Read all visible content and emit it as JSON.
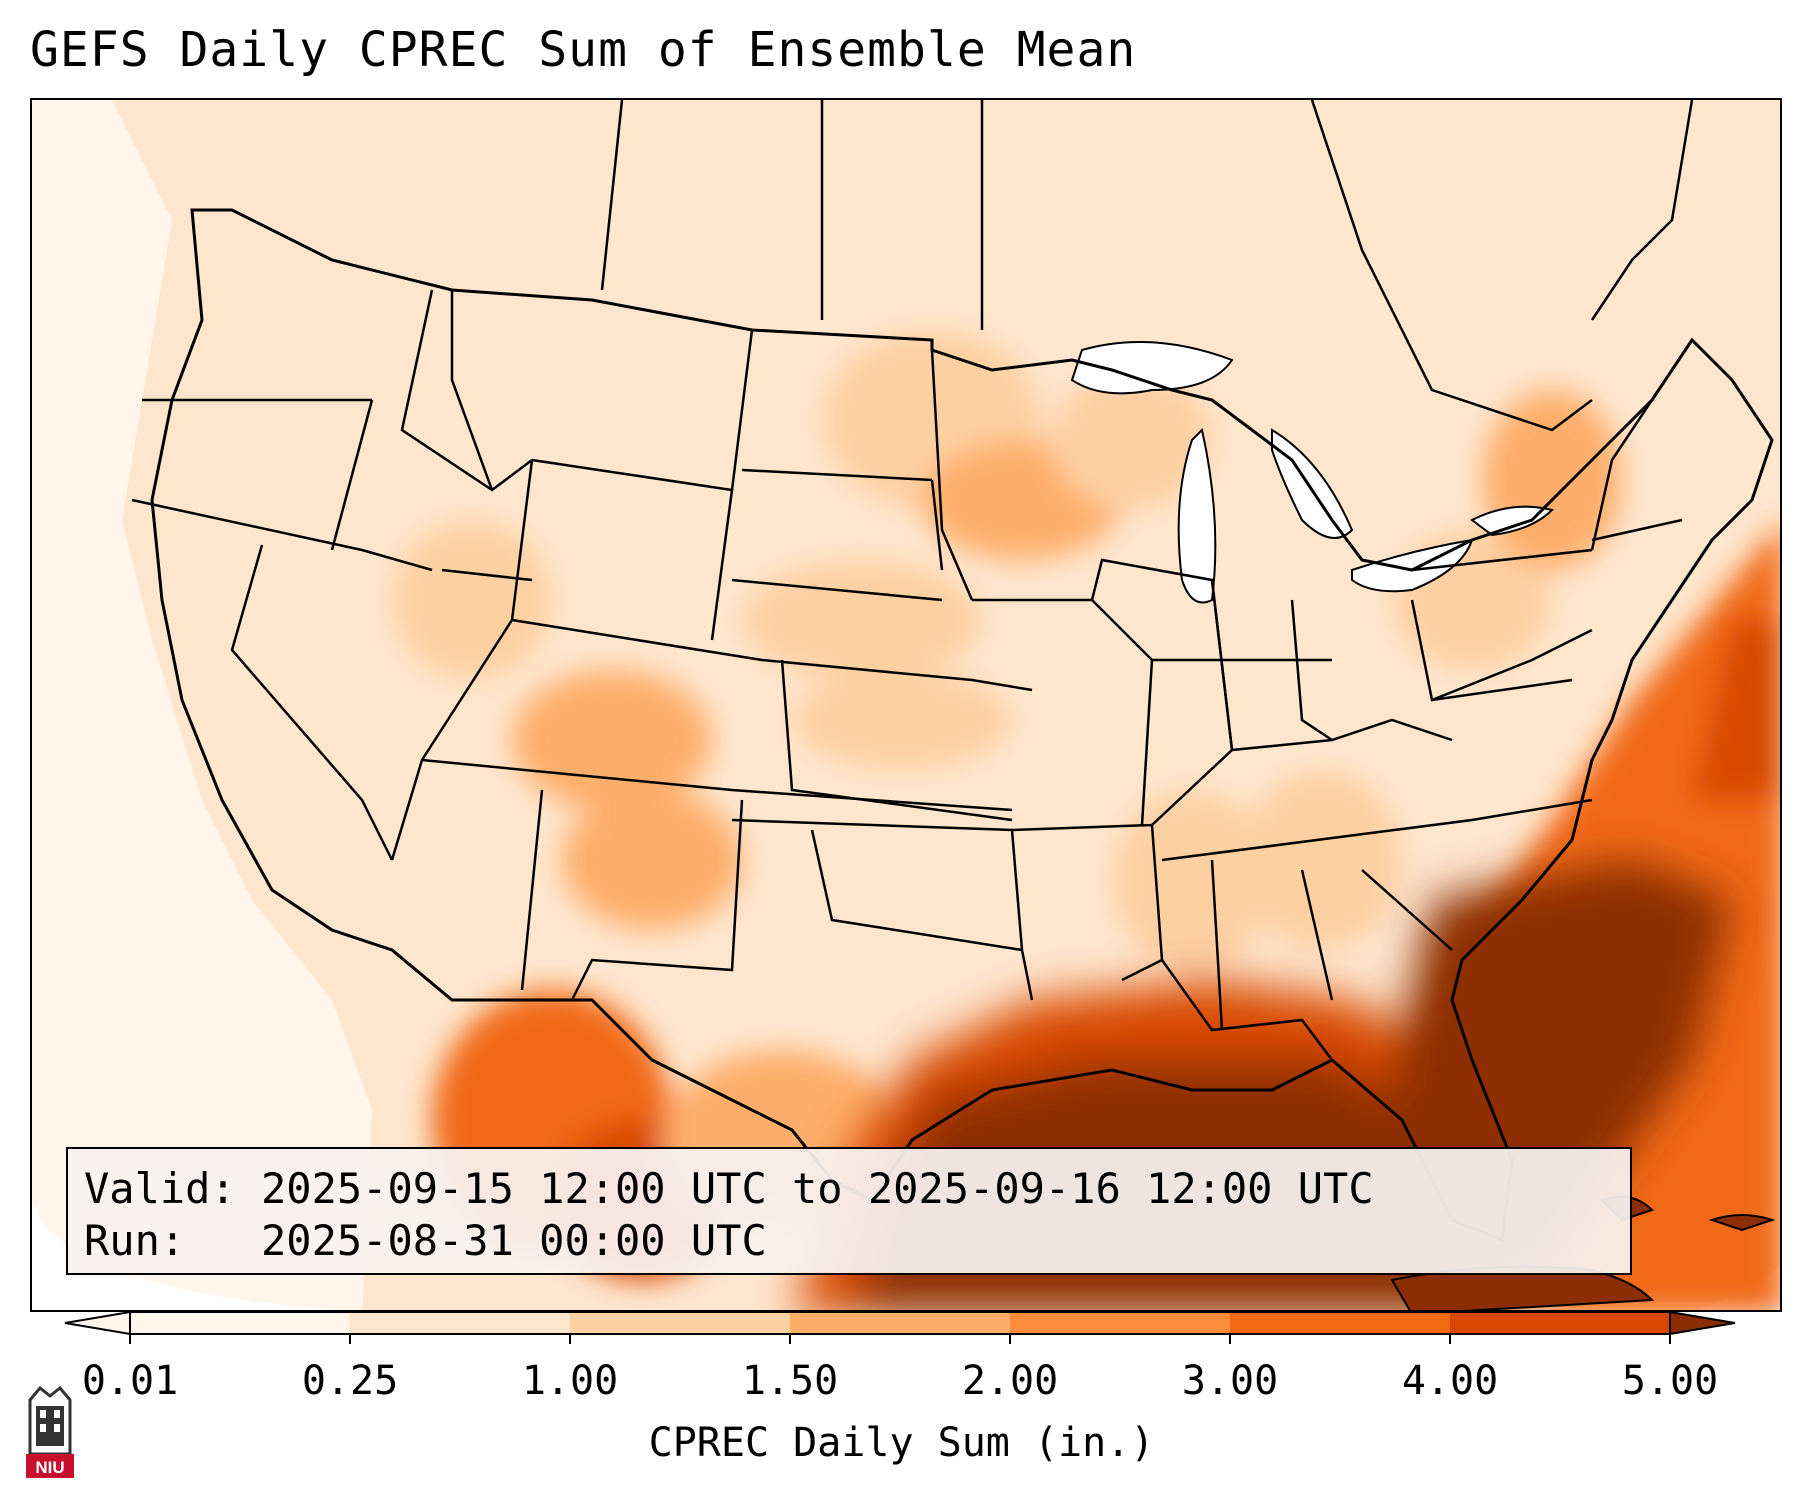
{
  "title": "GEFS Daily CPREC Sum of Ensemble Mean",
  "info": {
    "valid_label": "Valid:",
    "valid_value": "2025-09-15 12:00 UTC to 2025-09-16 12:00 UTC",
    "run_label": "Run:",
    "run_value": "2025-08-31 00:00 UTC"
  },
  "colorbar": {
    "label": "CPREC Daily Sum (in.)",
    "ticks": [
      "0.01",
      "0.25",
      "1.00",
      "1.50",
      "2.00",
      "3.00",
      "4.00",
      "5.00"
    ],
    "colors": [
      "#fff5eb",
      "#fee6ce",
      "#fdd0a2",
      "#fdae6b",
      "#fd8d3c",
      "#f16913",
      "#d94801",
      "#8c2d04"
    ],
    "extend": "both"
  },
  "map": {
    "region": "Contiguous United States",
    "base_color": "#fee6ce",
    "colors": {
      "border": "#000000",
      "very_light": "#fff5eb",
      "light": "#fdd0a2",
      "medium": "#fdae6b",
      "orange": "#f16913",
      "dark_orange": "#d94801",
      "brown": "#8c2d04"
    }
  },
  "logo": {
    "icon": "niu-logo-icon",
    "text": "NIU"
  }
}
